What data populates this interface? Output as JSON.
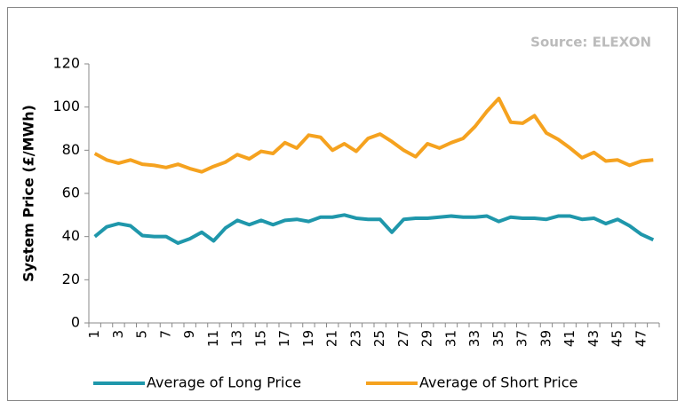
{
  "chart_data": {
    "type": "line",
    "source_note": "Source: ELEXON",
    "y_label": "System Price (£/MWh)",
    "categories": [
      1,
      null,
      3,
      null,
      5,
      null,
      7,
      null,
      9,
      null,
      11,
      null,
      13,
      null,
      15,
      null,
      17,
      null,
      19,
      null,
      21,
      null,
      23,
      null,
      25,
      null,
      27,
      null,
      29,
      null,
      31,
      null,
      33,
      null,
      35,
      null,
      37,
      null,
      39,
      null,
      41,
      null,
      43,
      null,
      45,
      null,
      47,
      null
    ],
    "series": [
      {
        "name": "Average of Long Price",
        "color": "#1f97ab",
        "values": [
          40,
          44.5,
          46,
          45,
          40.5,
          40,
          40,
          37,
          39,
          42,
          38,
          44,
          47.5,
          45.5,
          47.5,
          45.5,
          47.5,
          48,
          47,
          49,
          49,
          50,
          48.5,
          48,
          48,
          42,
          48,
          48.5,
          48.5,
          49,
          49.5,
          49,
          49,
          49.5,
          47,
          49,
          48.5,
          48.5,
          48,
          49.5,
          49.5,
          48,
          48.5,
          46,
          48,
          45,
          41,
          38.5
        ]
      },
      {
        "name": "Average of Short Price",
        "color": "#f5a21f",
        "values": [
          78.5,
          75.5,
          74,
          75.5,
          73.5,
          73,
          72,
          73.5,
          71.5,
          70,
          72.5,
          74.5,
          78,
          76,
          79.5,
          78.5,
          83.5,
          81,
          87,
          86,
          80,
          83,
          79.5,
          85.5,
          87.5,
          84,
          80,
          77,
          83,
          81,
          83.5,
          85.5,
          91,
          98,
          104,
          93,
          92.5,
          96,
          88,
          85,
          81,
          76.5,
          79,
          75,
          75.5,
          73,
          75,
          75.5
        ]
      }
    ],
    "ylim": [
      0,
      120
    ],
    "yticks": [
      0,
      20,
      40,
      60,
      80,
      100,
      120
    ],
    "grid": false,
    "legend": "bottom"
  }
}
